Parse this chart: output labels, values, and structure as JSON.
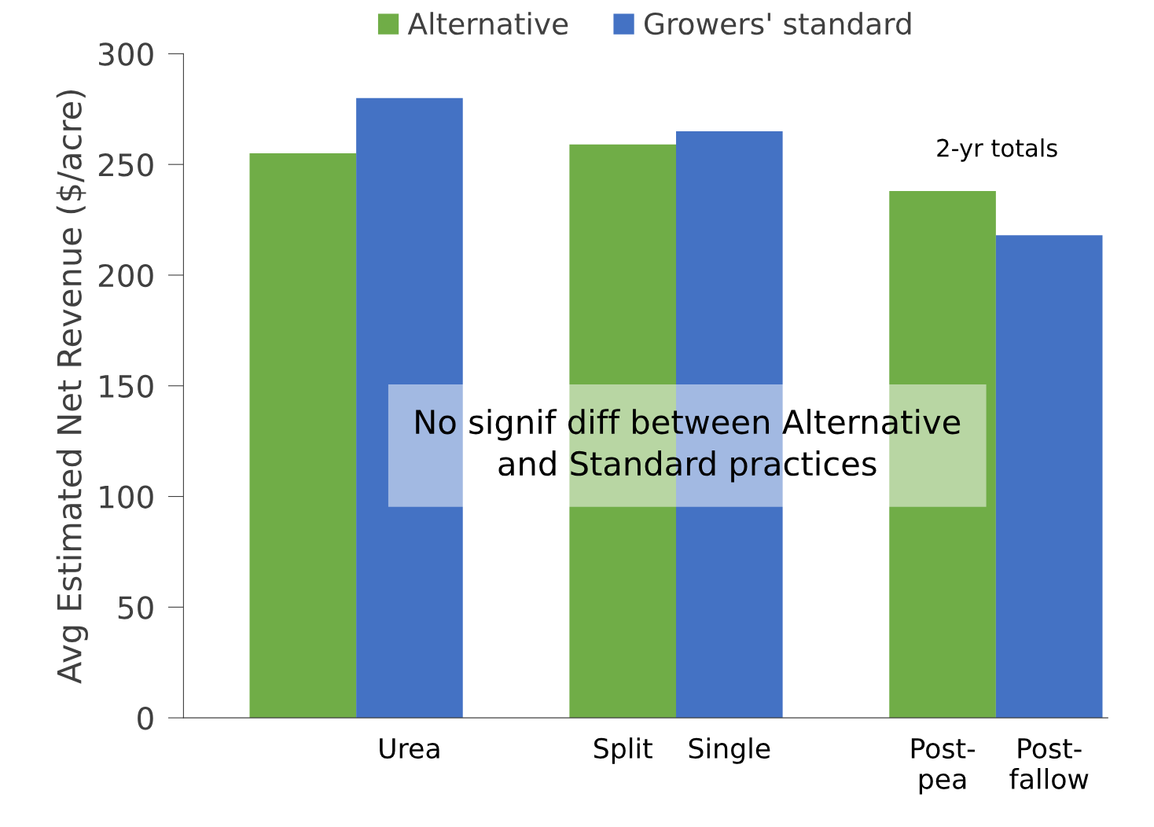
{
  "chart_data": {
    "type": "bar",
    "ylabel": "Avg Estimated Net Revenue ($/acre)",
    "categories": [
      null,
      "Urea",
      "Split",
      "Single",
      "Post-\npea",
      "Post-\nfallow"
    ],
    "series": [
      {
        "name": "Alternative",
        "color": "#70ad47",
        "values": [
          255,
          null,
          259,
          null,
          238,
          null
        ]
      },
      {
        "name": "Growers' standard",
        "color": "#4472c4",
        "values": [
          null,
          280,
          null,
          265,
          null,
          218
        ]
      }
    ],
    "ylim": [
      0,
      300
    ],
    "yticks": [
      0,
      50,
      100,
      150,
      200,
      250,
      300
    ],
    "grid": false,
    "legend": "top",
    "annotations": [
      "2-yr totals",
      "No signif diff between Alternative\nand Standard practices"
    ]
  }
}
